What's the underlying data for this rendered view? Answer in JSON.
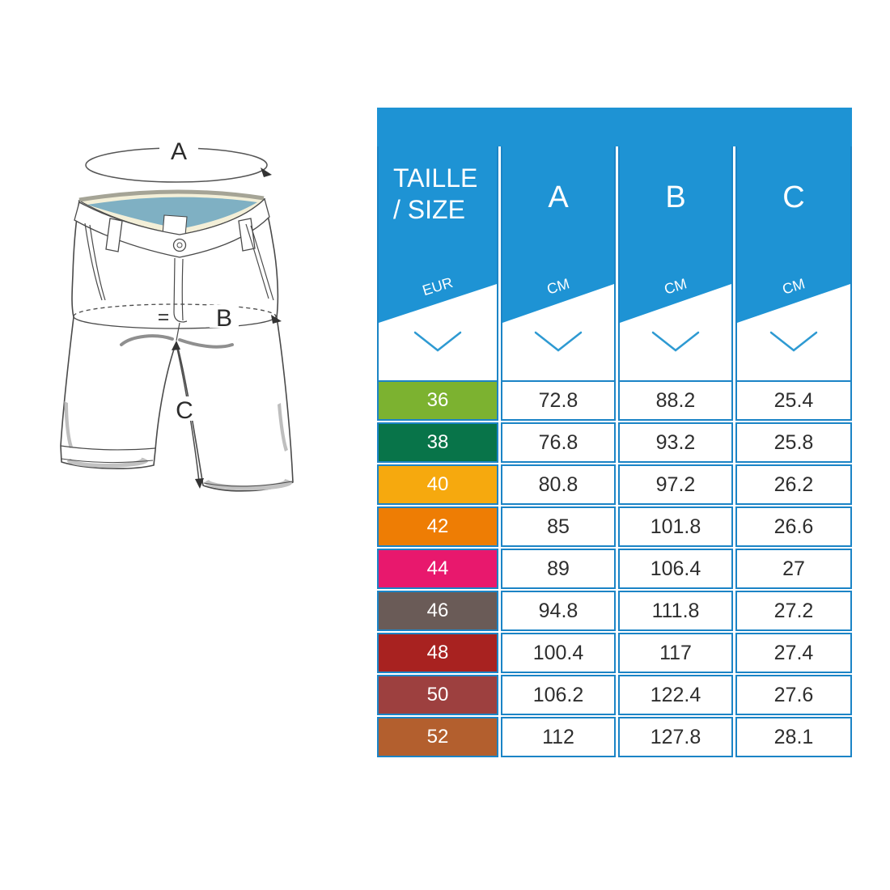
{
  "illustration": {
    "label_a": "A",
    "label_b": "B",
    "label_c": "C"
  },
  "table": {
    "size_header": {
      "line1": "TAILLE",
      "line2": "/ SIZE",
      "unit": "EUR"
    },
    "columns": [
      {
        "label": "A",
        "unit": "CM"
      },
      {
        "label": "B",
        "unit": "CM"
      },
      {
        "label": "C",
        "unit": "CM"
      }
    ],
    "rows": [
      {
        "size": "36",
        "a": "72.8",
        "b": "88.2",
        "c": "25.4",
        "color": "#7cb230"
      },
      {
        "size": "38",
        "a": "76.8",
        "b": "93.2",
        "c": "25.8",
        "color": "#087449"
      },
      {
        "size": "40",
        "a": "80.8",
        "b": "97.2",
        "c": "26.2",
        "color": "#f6a90e"
      },
      {
        "size": "42",
        "a": "85",
        "b": "101.8",
        "c": "26.6",
        "color": "#ee7d04"
      },
      {
        "size": "44",
        "a": "89",
        "b": "106.4",
        "c": "27",
        "color": "#e8186d"
      },
      {
        "size": "46",
        "a": "94.8",
        "b": "111.8",
        "c": "27.2",
        "color": "#6a5b57"
      },
      {
        "size": "48",
        "a": "100.4",
        "b": "117",
        "c": "27.4",
        "color": "#a82220"
      },
      {
        "size": "50",
        "a": "106.2",
        "b": "122.4",
        "c": "27.6",
        "color": "#9d403f"
      },
      {
        "size": "52",
        "a": "112",
        "b": "127.8",
        "c": "28.1",
        "color": "#b35f2e"
      }
    ],
    "colors": {
      "header_blue": "#1e93d4",
      "border_blue": "#1b84c6",
      "chevron_blue": "#2e9ad2"
    }
  }
}
